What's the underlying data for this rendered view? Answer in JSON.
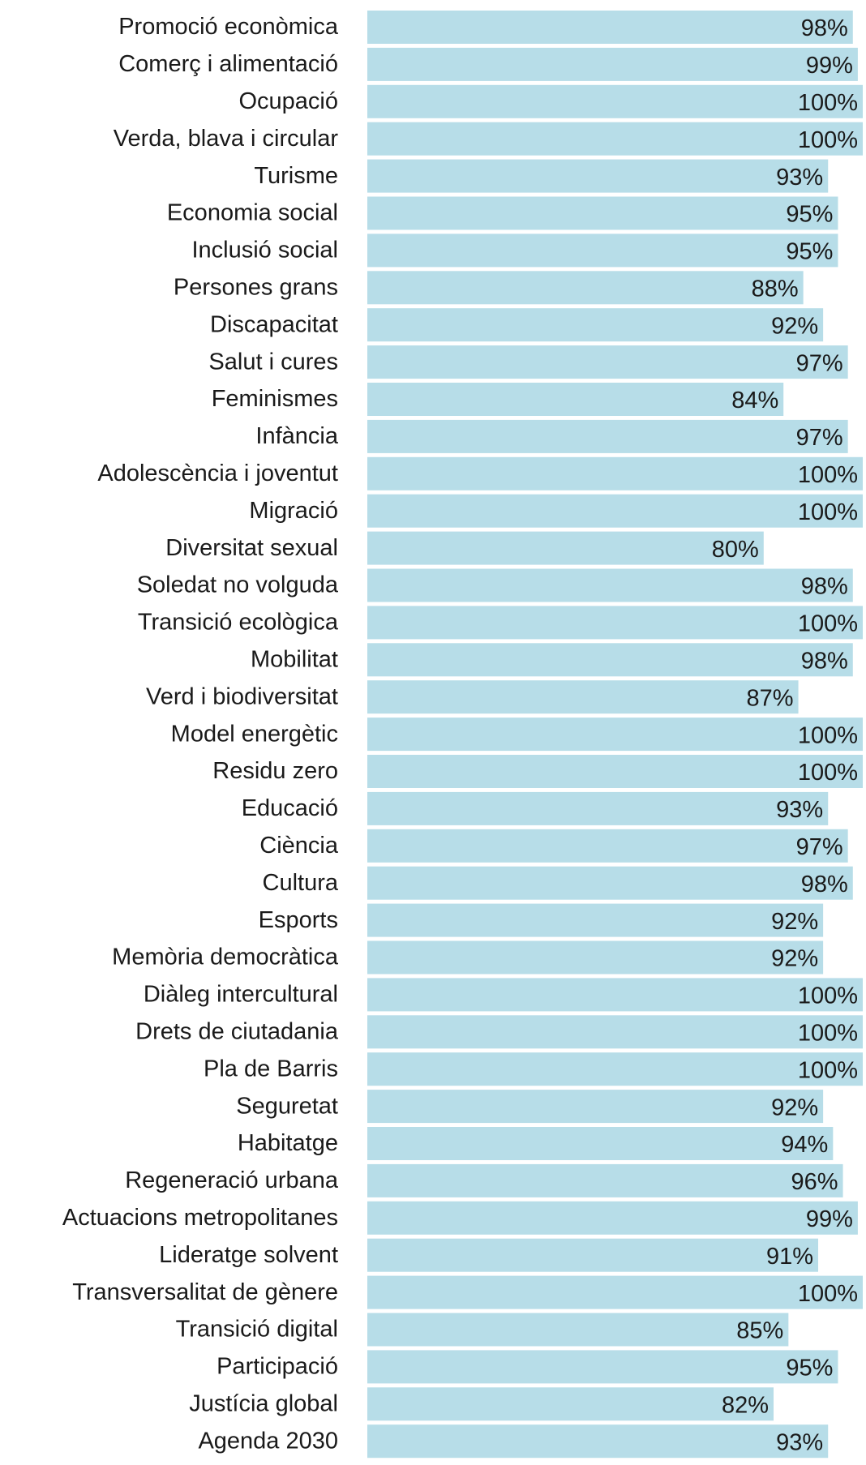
{
  "chart_data": {
    "type": "bar",
    "orientation": "horizontal",
    "categories": [
      "Promoció econòmica",
      "Comerç i alimentació",
      "Ocupació",
      "Verda, blava i circular",
      "Turisme",
      "Economia social",
      "Inclusió social",
      "Persones grans",
      "Discapacitat",
      "Salut i cures",
      "Feminismes",
      "Infància",
      "Adolescència i joventut",
      "Migració",
      "Diversitat sexual",
      "Soledat no volguda",
      "Transició ecològica",
      "Mobilitat",
      "Verd i biodiversitat",
      "Model energètic",
      "Residu zero",
      "Educació",
      "Ciència",
      "Cultura",
      "Esports",
      "Memòria democràtica",
      "Diàleg intercultural",
      "Drets de ciutadania",
      "Pla de Barris",
      "Seguretat",
      "Habitatge",
      "Regeneració urbana",
      "Actuacions metropolitanes",
      "Lideratge solvent",
      "Transversalitat de gènere",
      "Transició digital",
      "Participació",
      "Justícia global",
      "Agenda 2030"
    ],
    "values": [
      98,
      99,
      100,
      100,
      93,
      95,
      95,
      88,
      92,
      97,
      84,
      97,
      100,
      100,
      80,
      98,
      100,
      98,
      87,
      100,
      100,
      93,
      97,
      98,
      92,
      92,
      100,
      100,
      100,
      92,
      94,
      96,
      99,
      91,
      100,
      85,
      95,
      82,
      93
    ],
    "value_labels": [
      "98%",
      "99%",
      "100%",
      "100%",
      "93%",
      "95%",
      "95%",
      "88%",
      "92%",
      "97%",
      "84%",
      "97%",
      "100%",
      "100%",
      "80%",
      "98%",
      "100%",
      "98%",
      "87%",
      "100%",
      "100%",
      "93%",
      "97%",
      "98%",
      "92%",
      "92%",
      "100%",
      "100%",
      "100%",
      "92%",
      "94%",
      "96%",
      "99%",
      "91%",
      "100%",
      "85%",
      "95%",
      "82%",
      "93%"
    ],
    "color": "#b7dde8",
    "xlim": [
      0,
      100
    ]
  }
}
